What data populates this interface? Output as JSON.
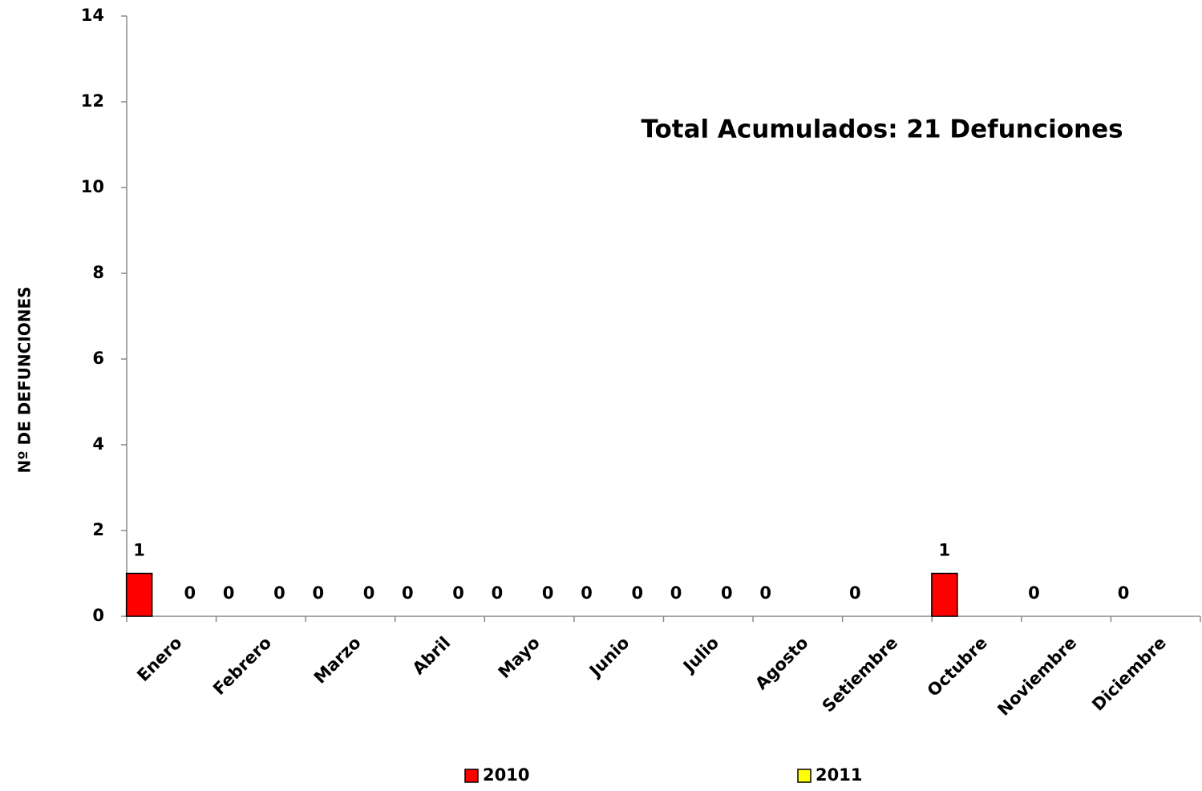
{
  "chart_data": {
    "type": "bar",
    "annotation": "Total Acumulados: 21 Defunciones",
    "y_label": "Nº DE DEFUNCIONES",
    "categories": [
      "Enero",
      "Febrero",
      "Marzo",
      "Abril",
      "Mayo",
      "Junio",
      "Julio",
      "Agosto",
      "Setiembre",
      "Octubre",
      "Noviembre",
      "Diciembre"
    ],
    "series": [
      {
        "name": "2010",
        "color": "#ff0000",
        "values": [
          1,
          0,
          0,
          0,
          0,
          0,
          0,
          0,
          0,
          1,
          0,
          0
        ]
      },
      {
        "name": "2011",
        "color": "#ffff00",
        "values": [
          0,
          0,
          0,
          0,
          0,
          0,
          0,
          null,
          null,
          null,
          null,
          null
        ]
      }
    ],
    "ylim": [
      0,
      14
    ],
    "yticks": [
      0,
      2,
      4,
      6,
      8,
      10,
      12,
      14
    ],
    "grid": false,
    "legend": "bottom"
  }
}
